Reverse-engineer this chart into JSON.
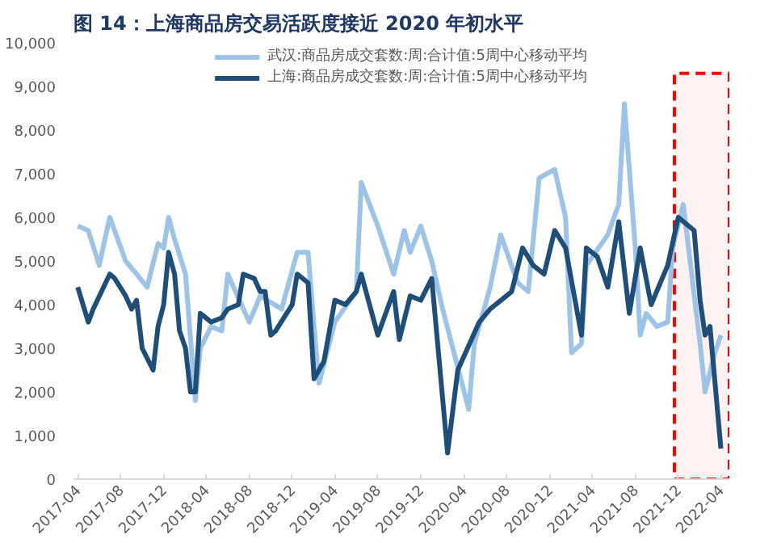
{
  "chart_data": {
    "type": "line",
    "title": "图 14：上海商品房交易活跃度接近 2020 年初水平",
    "legend": "top",
    "grid": false,
    "line_style": "solid",
    "marker": "none",
    "xlim": [
      "2017-03-20",
      "2022-04-25"
    ],
    "ylim": [
      0,
      10000
    ],
    "xticks": [
      "2017-04",
      "2017-08",
      "2017-12",
      "2018-04",
      "2018-08",
      "2018-12",
      "2019-04",
      "2019-08",
      "2019-12",
      "2020-04",
      "2020-08",
      "2020-12",
      "2021-04",
      "2021-08",
      "2021-12",
      "2022-04"
    ],
    "yticks": [
      {
        "value": 0,
        "label": "0"
      },
      {
        "value": 1000,
        "label": "1,000"
      },
      {
        "value": 2000,
        "label": "2,000"
      },
      {
        "value": 3000,
        "label": "3,000"
      },
      {
        "value": 4000,
        "label": "4,000"
      },
      {
        "value": 5000,
        "label": "5,000"
      },
      {
        "value": 6000,
        "label": "6,000"
      },
      {
        "value": 7000,
        "label": "7,000"
      },
      {
        "value": 8000,
        "label": "8,000"
      },
      {
        "value": 9000,
        "label": "9,000"
      },
      {
        "value": 10000,
        "label": "10,000"
      }
    ],
    "bands": [
      {
        "axis": "x",
        "from": "2021-11-20",
        "to": "2022-04-25",
        "color": "#ff0000"
      }
    ],
    "series": [
      {
        "name": "武汉:商品房成交套数:周:合计值:5周中心移动平均",
        "color": "#9dc3e6",
        "x": [
          "2017-04-01",
          "2017-05-01",
          "2017-06-01",
          "2017-07-01",
          "2017-08-15",
          "2017-09-15",
          "2017-10-15",
          "2017-11-15",
          "2017-12-01",
          "2017-12-15",
          "2018-01-01",
          "2018-02-01",
          "2018-03-01",
          "2018-03-15",
          "2018-04-15",
          "2018-05-15",
          "2018-06-01",
          "2018-08-01",
          "2018-09-01",
          "2018-11-01",
          "2018-12-15",
          "2019-01-15",
          "2019-02-01",
          "2019-02-15",
          "2019-04-01",
          "2019-06-01",
          "2019-06-15",
          "2019-08-01",
          "2019-09-15",
          "2019-10-15",
          "2019-11-01",
          "2019-12-01",
          "2020-01-01",
          "2020-02-01",
          "2020-04-15",
          "2020-05-01",
          "2020-06-15",
          "2020-07-15",
          "2020-09-01",
          "2020-10-01",
          "2020-11-01",
          "2020-12-15",
          "2021-01-15",
          "2021-02-01",
          "2021-03-01",
          "2021-03-15",
          "2021-05-15",
          "2021-06-15",
          "2021-07-01",
          "2021-08-01",
          "2021-08-15",
          "2021-09-01",
          "2021-10-01",
          "2021-11-01",
          "2021-11-15",
          "2021-12-15",
          "2022-02-01",
          "2022-02-15",
          "2022-03-15",
          "2022-04-01"
        ],
        "values": [
          5800,
          5700,
          4900,
          6000,
          5000,
          4700,
          4400,
          5400,
          5300,
          6000,
          5500,
          4700,
          1800,
          3000,
          3500,
          3400,
          4700,
          3600,
          4200,
          3900,
          5200,
          5200,
          3500,
          2200,
          3600,
          4300,
          6800,
          5800,
          4700,
          5700,
          5200,
          5800,
          5000,
          3900,
          1600,
          3100,
          4400,
          5600,
          4500,
          4300,
          6900,
          7100,
          6000,
          2900,
          3100,
          4900,
          5600,
          6300,
          8600,
          5300,
          3300,
          3800,
          3500,
          3600,
          5300,
          6300,
          3100,
          2000,
          2900,
          3300
        ]
      },
      {
        "name": "上海:商品房成交套数:周:合计值:5周中心移动平均",
        "color": "#1f4e79",
        "x": [
          "2017-04-01",
          "2017-05-01",
          "2017-05-15",
          "2017-07-01",
          "2017-07-15",
          "2017-08-15",
          "2017-09-01",
          "2017-09-15",
          "2017-10-01",
          "2017-11-01",
          "2017-11-15",
          "2017-12-01",
          "2017-12-15",
          "2018-01-01",
          "2018-01-15",
          "2018-02-01",
          "2018-02-15",
          "2018-03-01",
          "2018-03-15",
          "2018-04-15",
          "2018-05-15",
          "2018-06-01",
          "2018-07-01",
          "2018-07-15",
          "2018-08-15",
          "2018-09-01",
          "2018-09-15",
          "2018-10-01",
          "2018-10-15",
          "2018-11-15",
          "2018-12-01",
          "2018-12-15",
          "2019-01-15",
          "2019-02-01",
          "2019-03-01",
          "2019-04-01",
          "2019-05-01",
          "2019-06-01",
          "2019-06-15",
          "2019-08-01",
          "2019-09-15",
          "2019-10-01",
          "2019-11-01",
          "2019-12-01",
          "2020-01-01",
          "2020-02-15",
          "2020-03-15",
          "2020-05-15",
          "2020-06-15",
          "2020-08-15",
          "2020-09-15",
          "2020-10-15",
          "2020-11-15",
          "2020-12-15",
          "2021-01-15",
          "2021-03-01",
          "2021-03-15",
          "2021-04-15",
          "2021-05-15",
          "2021-06-15",
          "2021-07-15",
          "2021-08-15",
          "2021-09-15",
          "2021-11-01",
          "2021-12-01",
          "2022-01-15",
          "2022-02-01",
          "2022-02-15",
          "2022-03-01",
          "2022-04-01"
        ],
        "values": [
          4400,
          3600,
          3900,
          4700,
          4600,
          4200,
          3900,
          4100,
          3000,
          2500,
          3500,
          4000,
          5200,
          4700,
          3400,
          3000,
          2000,
          2000,
          3800,
          3600,
          3700,
          3900,
          4000,
          4700,
          4600,
          4300,
          4300,
          3300,
          3400,
          3800,
          4000,
          4700,
          4500,
          2300,
          2700,
          4100,
          4000,
          4300,
          4700,
          3300,
          4300,
          3200,
          4200,
          4100,
          4600,
          600,
          2500,
          3600,
          3900,
          4300,
          5300,
          4900,
          4700,
          5700,
          5300,
          3300,
          5300,
          5100,
          4400,
          5900,
          3800,
          5300,
          4000,
          4900,
          6000,
          5700,
          4100,
          3300,
          3500,
          700
        ]
      }
    ]
  }
}
